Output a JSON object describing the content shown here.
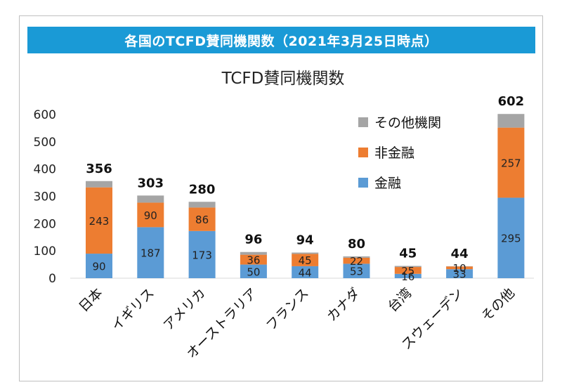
{
  "banner_title": "各国のTCFD賛同機関数（2021年3月25日時点）",
  "chart_data": {
    "type": "bar",
    "stacked": true,
    "title": "TCFD賛同機関数",
    "categories": [
      "日本",
      "イギリス",
      "アメリカ",
      "オーストラリア",
      "フランス",
      "カナダ",
      "台湾",
      "スウェーデン",
      "その他"
    ],
    "totals": [
      356,
      303,
      280,
      96,
      94,
      80,
      45,
      44,
      602
    ],
    "series": [
      {
        "name": "金融",
        "color": "#5b9bd5",
        "values": [
          90,
          187,
          173,
          50,
          44,
          53,
          16,
          33,
          295
        ]
      },
      {
        "name": "非金融",
        "color": "#ed7d31",
        "values": [
          243,
          90,
          86,
          36,
          45,
          22,
          25,
          10,
          257
        ]
      },
      {
        "name": "その他機関",
        "color": "#a5a5a5",
        "values": [
          23,
          26,
          21,
          10,
          5,
          5,
          4,
          1,
          50
        ]
      }
    ],
    "show_labels_for_series": [
      "金融",
      "非金融"
    ],
    "legend_order": [
      "その他機関",
      "非金融",
      "金融"
    ],
    "yticks": [
      0,
      100,
      200,
      300,
      400,
      500,
      600
    ],
    "ylim": [
      0,
      600
    ],
    "legend_position": "top-right",
    "xlabel": "",
    "ylabel": ""
  }
}
